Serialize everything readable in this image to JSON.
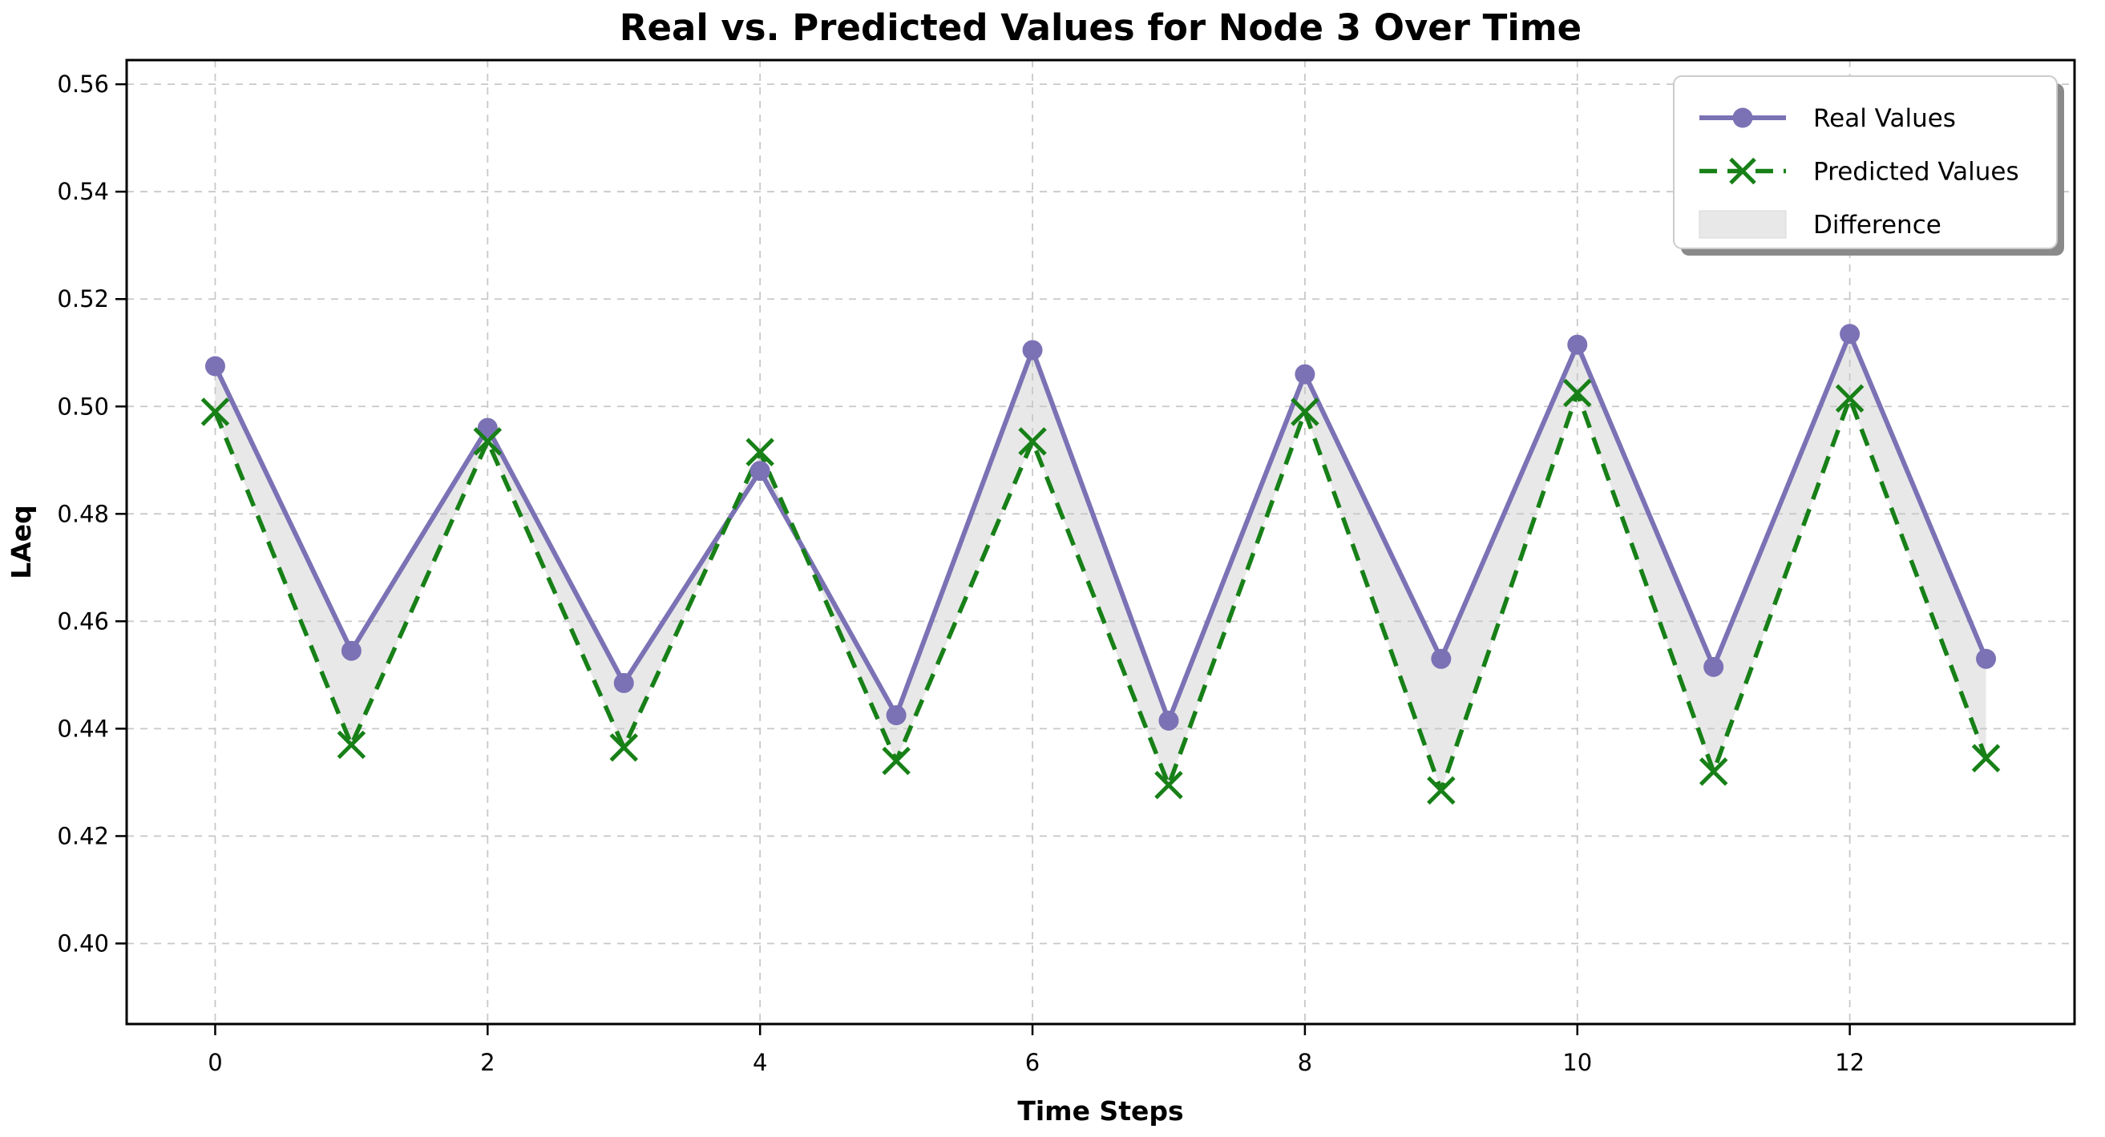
{
  "figure": {
    "background": "#ffffff"
  },
  "chart_data": {
    "type": "line",
    "title": "Real vs. Predicted Values for Node 3 Over Time",
    "xlabel": "Time Steps",
    "ylabel": "LAeq",
    "x": [
      0,
      1,
      2,
      3,
      4,
      5,
      6,
      7,
      8,
      9,
      10,
      11,
      12,
      13
    ],
    "series": [
      {
        "name": "Real Values",
        "color": "#7b72b5",
        "line_style": "solid",
        "marker": "circle",
        "values": [
          0.5075,
          0.4545,
          0.496,
          0.4485,
          0.488,
          0.4425,
          0.5105,
          0.4415,
          0.506,
          0.453,
          0.5115,
          0.4515,
          0.5135,
          0.453
        ]
      },
      {
        "name": "Predicted Values",
        "color": "#178017",
        "line_style": "dashed",
        "marker": "x",
        "values": [
          0.499,
          0.437,
          0.4935,
          0.4365,
          0.4915,
          0.434,
          0.4935,
          0.4295,
          0.499,
          0.4285,
          0.5025,
          0.432,
          0.5015,
          0.4345
        ]
      }
    ],
    "fill_between": {
      "label": "Difference",
      "color": "#e8e8e8"
    },
    "xlim": [
      -0.65,
      13.65
    ],
    "ylim": [
      0.385,
      0.5645
    ],
    "xticks": [
      0,
      2,
      4,
      6,
      8,
      10,
      12
    ],
    "xtick_labels": [
      "0",
      "2",
      "4",
      "6",
      "8",
      "10",
      "12"
    ],
    "yticks": [
      0.4,
      0.42,
      0.44,
      0.46,
      0.48,
      0.5,
      0.52,
      0.54,
      0.56
    ],
    "ytick_labels": [
      "0.40",
      "0.42",
      "0.44",
      "0.46",
      "0.48",
      "0.50",
      "0.52",
      "0.54",
      "0.56"
    ],
    "grid": true,
    "grid_color": "#c8c8c8",
    "frame_color": "#000000",
    "legend_position": "upper right",
    "legend_items": [
      "Real Values",
      "Predicted Values",
      "Difference"
    ]
  }
}
